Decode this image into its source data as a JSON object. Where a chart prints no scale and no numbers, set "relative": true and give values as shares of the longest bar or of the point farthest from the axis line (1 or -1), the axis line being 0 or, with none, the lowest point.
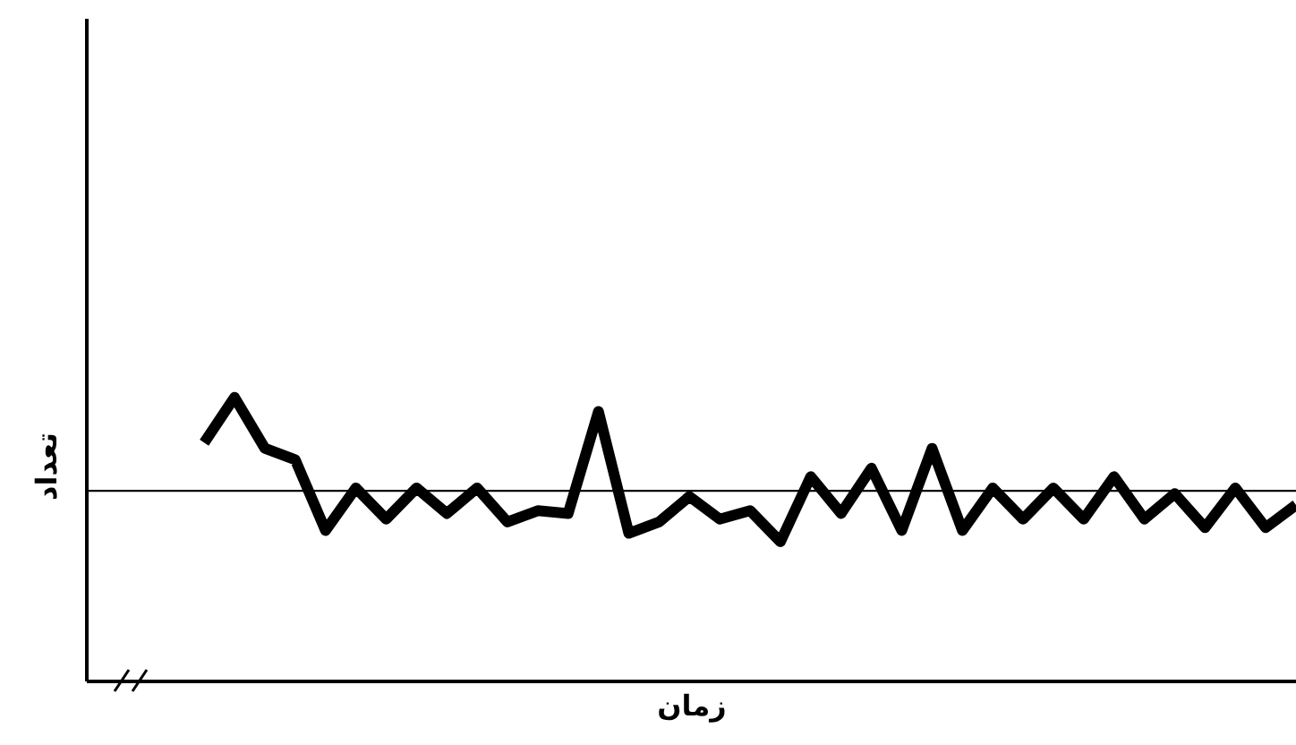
{
  "chart_data": {
    "type": "line",
    "xlabel": "زمان",
    "ylabel": "تعداد",
    "relative": true,
    "categories": [
      null,
      null,
      null,
      null,
      null,
      null,
      null,
      null,
      null,
      null,
      null,
      null,
      null,
      null,
      null,
      null,
      null,
      null,
      null,
      null,
      null,
      null,
      null,
      null,
      null,
      null,
      null,
      null,
      null,
      null,
      null,
      null,
      null,
      null,
      null,
      null,
      null
    ],
    "series": [
      {
        "color": "#000000",
        "values": [
          0.84,
          1,
          0.82,
          0.78,
          0.53,
          0.68,
          0.57,
          0.68,
          0.59,
          0.68,
          0.56,
          0.6,
          0.59,
          0.95,
          0.52,
          0.56,
          0.65,
          0.57,
          0.6,
          0.49,
          0.72,
          0.59,
          0.75,
          0.53,
          0.82,
          0.53,
          0.68,
          0.57,
          0.68,
          0.57,
          0.72,
          0.57,
          0.66,
          0.54,
          0.68,
          0.54,
          0.62
        ]
      }
    ],
    "ref_lines": [
      {
        "axis": "y",
        "value": 0.67,
        "color": "#000000"
      }
    ]
  }
}
